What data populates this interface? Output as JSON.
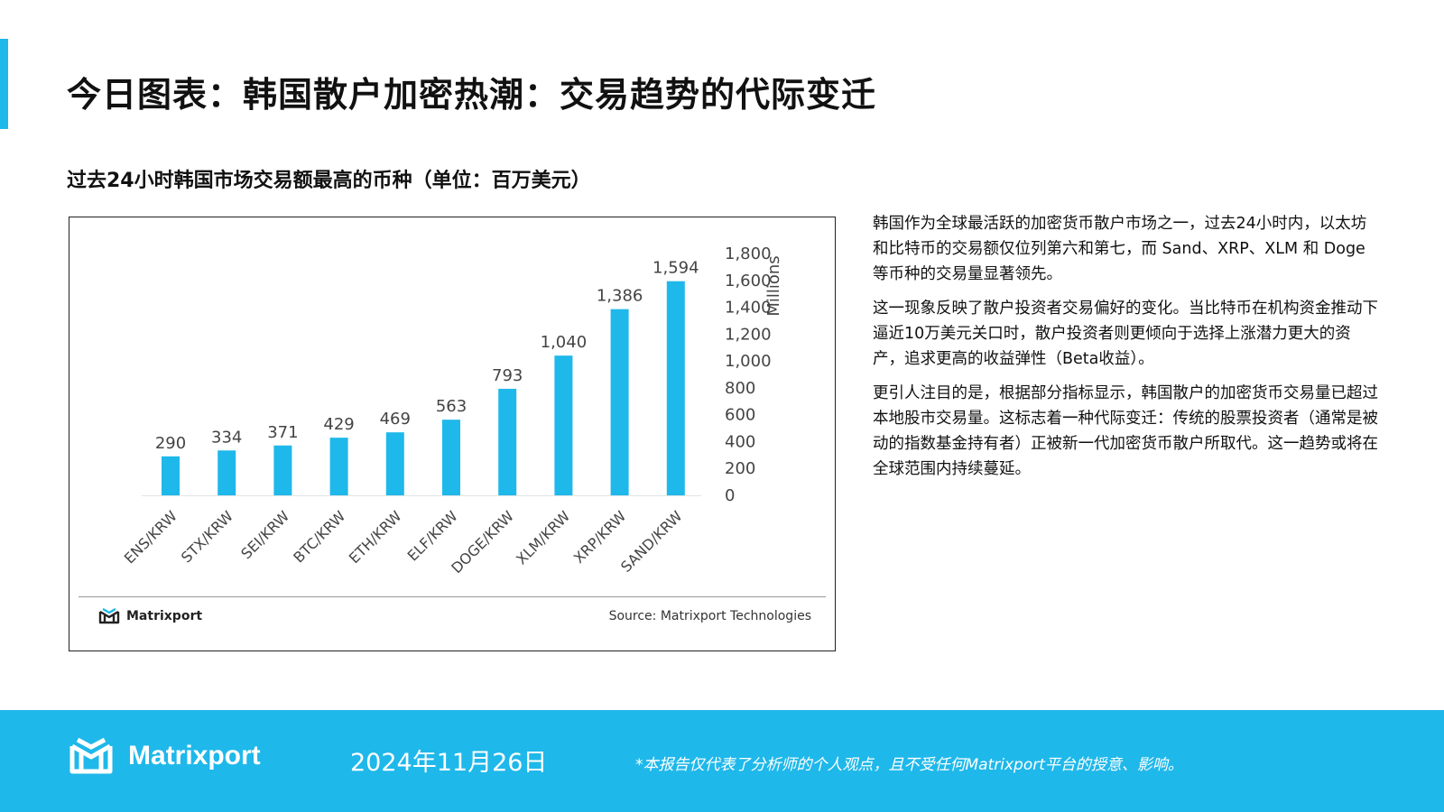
{
  "page": {
    "title": "今日图表：韩国散户加密热潮：交易趋势的代际变迁",
    "subtitle": "过去24小时韩国市场交易额最高的币种（单位：百万美元）"
  },
  "chart_data": {
    "type": "bar",
    "categories": [
      "ENS/KRW",
      "STX/KRW",
      "SEI/KRW",
      "BTC/KRW",
      "ETH/KRW",
      "ELF/KRW",
      "DOGE/KRW",
      "XLM/KRW",
      "XRP/KRW",
      "SAND/KRW"
    ],
    "values": [
      290,
      334,
      371,
      429,
      469,
      563,
      793,
      1040,
      1386,
      1594
    ],
    "value_labels": [
      "290",
      "334",
      "371",
      "429",
      "469",
      "563",
      "793",
      "1,040",
      "1,386",
      "1,594"
    ],
    "ylabel": "Millions",
    "ylim": [
      0,
      1800
    ],
    "yticks": [
      "0",
      "200",
      "400",
      "600",
      "800",
      "1,000",
      "1,200",
      "1,400",
      "1,600",
      "1,800"
    ],
    "yaxis_side": "right",
    "grid": false,
    "bar_color": "#1fb8ea",
    "source": "Source: Matrixport Technologies",
    "logo_text": "Matrixport"
  },
  "commentary": {
    "paragraphs": [
      "韩国作为全球最活跃的加密货币散户市场之一，过去24小时内，以太坊和比特币的交易额仅位列第六和第七，而 Sand、XRP、XLM 和 Doge 等币种的交易量显著领先。",
      "这一现象反映了散户投资者交易偏好的变化。当比特币在机构资金推动下逼近10万美元关口时，散户投资者则更倾向于选择上涨潜力更大的资产，追求更高的收益弹性（Beta收益）。",
      "更引人注目的是，根据部分指标显示，韩国散户的加密货币交易量已超过本地股市交易量。这标志着一种代际变迁：传统的股票投资者（通常是被动的指数基金持有者）正被新一代加密货币散户所取代。这一趋势或将在全球范围内持续蔓延。"
    ]
  },
  "footer": {
    "brand": "Matrixport",
    "date": "2024年11月26日",
    "disclaimer": "*本报告仅代表了分析师的个人观点，且不受任何Matrixport平台的授意、影响。"
  },
  "colors": {
    "accent": "#1fb8ea",
    "text": "#111111"
  }
}
